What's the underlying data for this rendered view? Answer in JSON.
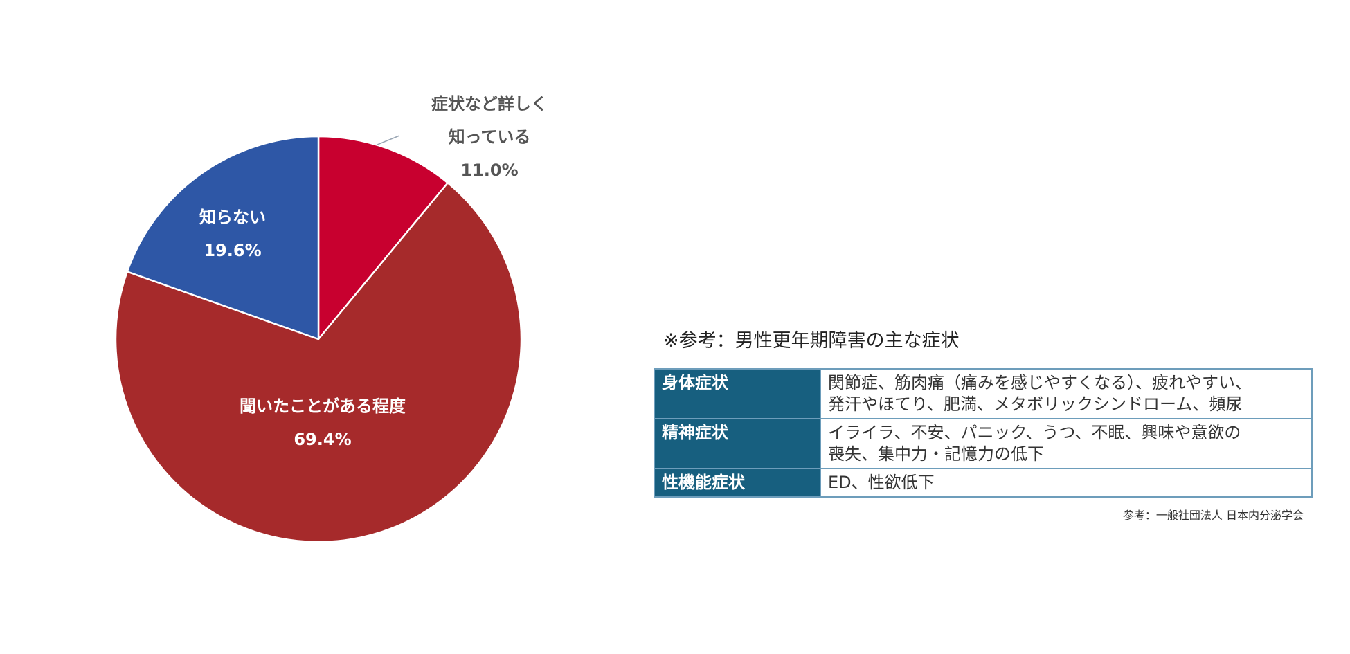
{
  "chart_data": {
    "type": "pie",
    "title": "",
    "start_angle_deg": 0,
    "direction": "clockwise",
    "slices": [
      {
        "name_lines": [
          "症状など詳しく",
          "知っている"
        ],
        "value_label": "11.0%",
        "value": 11.0,
        "color": "#c8002f",
        "label_color": "#555555",
        "label_placement": "outside"
      },
      {
        "name_lines": [
          "聞いたことがある程度"
        ],
        "value_label": "69.4%",
        "value": 69.4,
        "color": "#a62a2b",
        "label_color": "#ffffff",
        "label_placement": "inside"
      },
      {
        "name_lines": [
          "知らない"
        ],
        "value_label": "19.6%",
        "value": 19.6,
        "color": "#2e57a6",
        "label_color": "#ffffff",
        "label_placement": "inside"
      }
    ]
  },
  "note": {
    "title": "※参考：男性更年期障害の主な症状",
    "rows": [
      {
        "category": "身体症状",
        "lines": [
          "関節症、筋肉痛（痛みを感じやすくなる）、疲れやすい、",
          "発汗やほてり、肥満、メタボリックシンドローム、頻尿"
        ]
      },
      {
        "category": "精神症状",
        "lines": [
          "イライラ、不安、パニック、うつ、不眠、興味や意欲の",
          "喪失、集中力・記憶力の低下"
        ]
      },
      {
        "category": "性機能症状",
        "lines": [
          "ED、性欲低下"
        ]
      }
    ],
    "source": "参考：一般社団法人 日本内分泌学会"
  }
}
